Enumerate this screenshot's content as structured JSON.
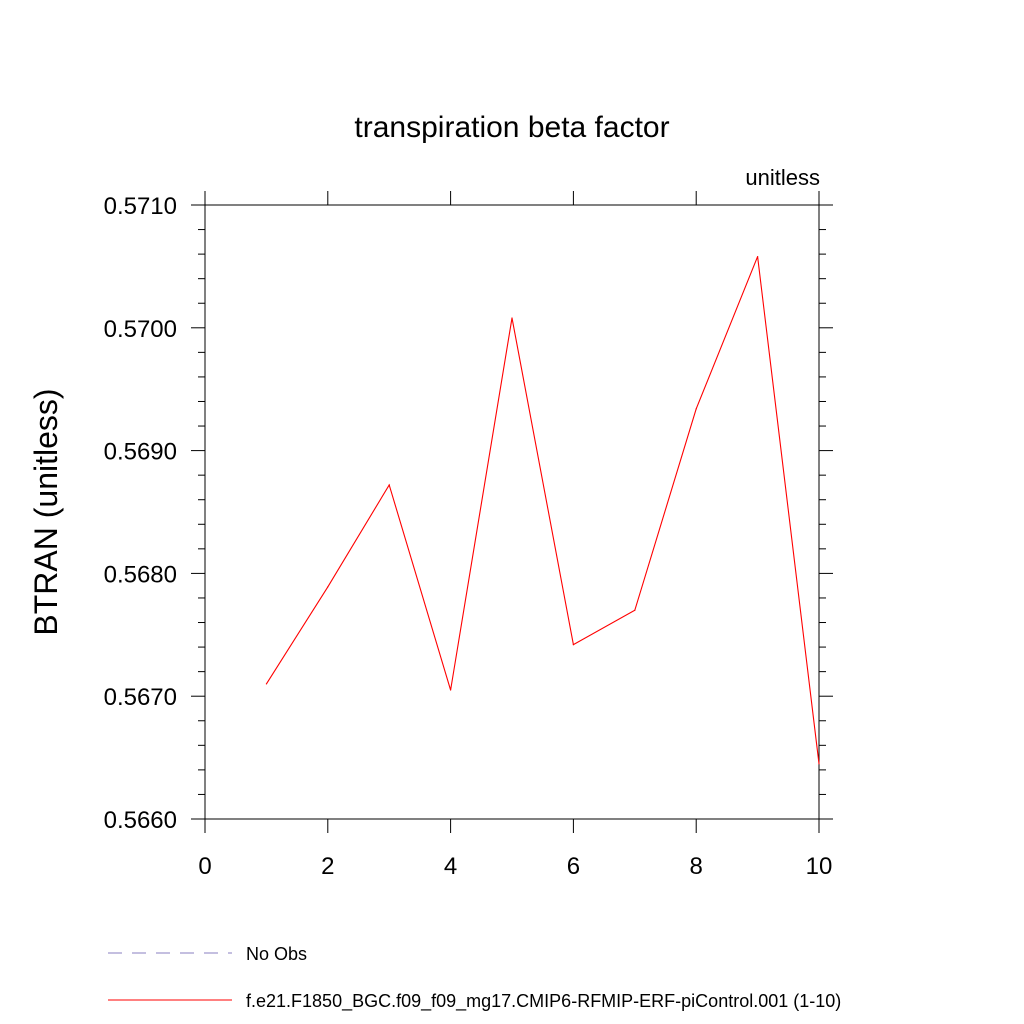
{
  "chart_data": {
    "type": "line",
    "title": "transpiration beta factor",
    "units_label": "unitless",
    "ylabel": "BTRAN  (unitless)",
    "xlabel": "",
    "xlim": [
      0,
      10
    ],
    "ylim": [
      0.566,
      0.571
    ],
    "x_ticks": [
      "0",
      "2",
      "4",
      "6",
      "8",
      "10"
    ],
    "y_ticks": [
      "0.5660",
      "0.5670",
      "0.5680",
      "0.5690",
      "0.5700",
      "0.5710"
    ],
    "grid": false,
    "legend_position": "bottom-left",
    "series": [
      {
        "name": "No Obs",
        "color": "#8a7fc0",
        "dashed": true,
        "x": [],
        "y": []
      },
      {
        "name": "f.e21.F1850_BGC.f09_f09_mg17.CMIP6-RFMIP-ERF-piControl.001 (1-10)",
        "color": "#ff0000",
        "dashed": false,
        "x": [
          1,
          2,
          3,
          4,
          5,
          6,
          7,
          8,
          9,
          10
        ],
        "y": [
          0.5671,
          0.56789,
          0.56872,
          0.56705,
          0.57008,
          0.56742,
          0.5677,
          0.56934,
          0.57058,
          0.56645
        ]
      }
    ]
  }
}
